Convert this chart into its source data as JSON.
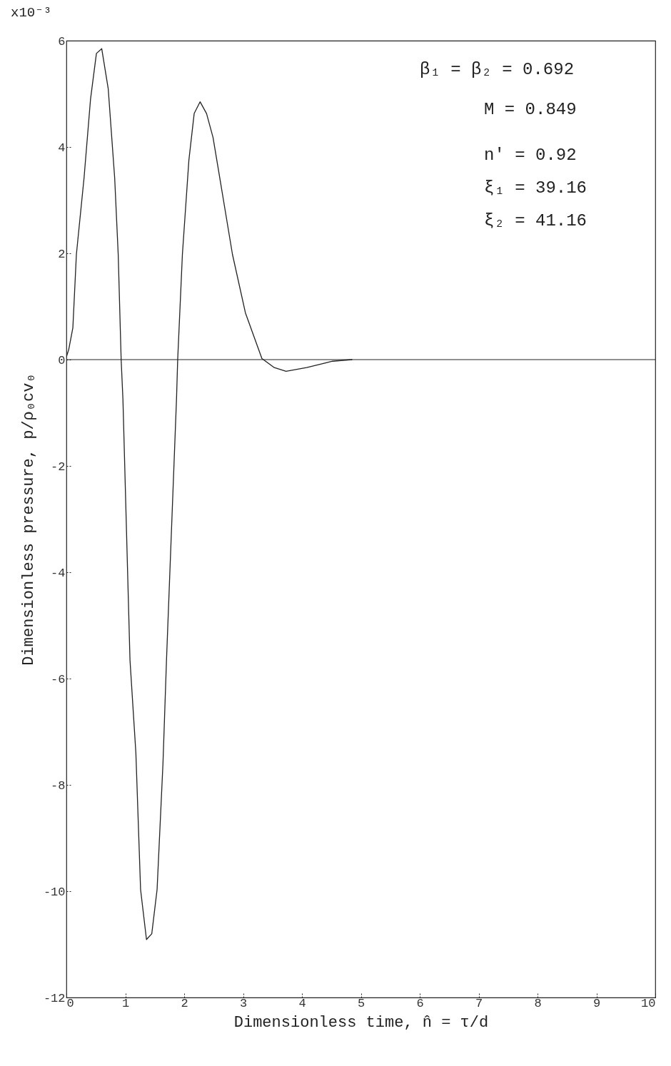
{
  "chart_data": {
    "type": "line",
    "xlabel": "Dimensionless time, n̂ = τ/d",
    "ylabel": "Dimensionless pressure, p/ρ₀cv₀",
    "annotations": [
      "x10⁻³",
      "β₁ = β₂ = 0.692",
      "M  = 0.849",
      "n' = 0.92",
      "ξ₁ = 39.16",
      "ξ₂ = 41.16"
    ],
    "x": [
      0,
      0.04,
      0.11,
      0.17,
      0.3,
      0.41,
      0.51,
      0.6,
      0.71,
      0.82,
      0.88,
      0.93,
      0.96,
      1.08,
      1.18,
      1.26,
      1.36,
      1.45,
      1.54,
      1.64,
      1.7,
      1.87,
      1.89,
      1.97,
      2.08,
      2.17,
      2.27,
      2.38,
      2.49,
      2.57,
      2.82,
      3.04,
      3.32,
      3.53,
      3.73,
      4.08,
      4.52,
      4.85
    ],
    "series": [
      {
        "color": "#222222",
        "values": [
          0.05,
          0.19,
          0.6,
          1.98,
          3.42,
          4.9,
          5.76,
          5.85,
          5.1,
          3.42,
          1.98,
          0,
          -0.74,
          -5.65,
          -7.4,
          -9.97,
          -10.91,
          -10.8,
          -9.97,
          -7.6,
          -5.65,
          -0.74,
          0,
          1.98,
          3.75,
          4.63,
          4.85,
          4.63,
          4.18,
          3.65,
          1.98,
          0.88,
          0.02,
          -0.15,
          -0.22,
          -0.15,
          -0.03,
          0
        ]
      }
    ],
    "xlim": [
      0,
      10
    ],
    "xticks": [
      0,
      1,
      2,
      3,
      4,
      5,
      6,
      7,
      8,
      9,
      10
    ],
    "ylim": [
      -12,
      6
    ],
    "yticks": [
      -12,
      -10,
      -8,
      -6,
      -4,
      -2,
      0,
      2,
      4,
      6
    ],
    "ref_lines": [
      {
        "axis": "y",
        "value": 0
      }
    ],
    "grid": false,
    "marker": "none",
    "line_style": "solid"
  }
}
